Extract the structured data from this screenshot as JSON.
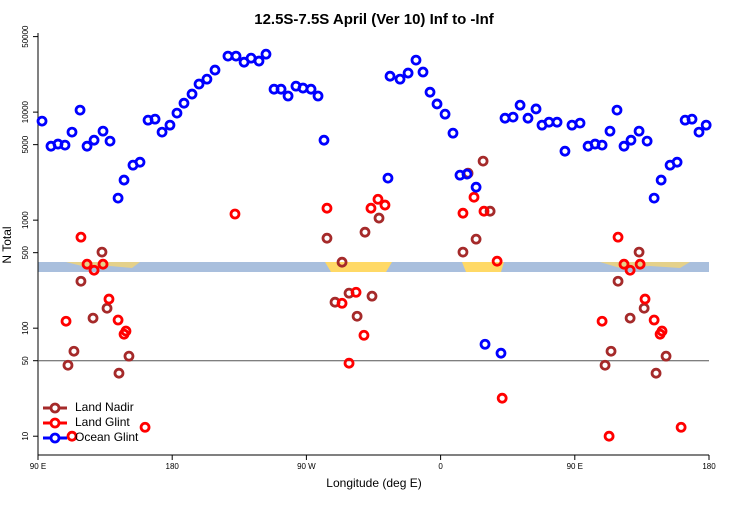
{
  "chart_data": {
    "type": "scatter",
    "title": "12.5S-7.5S April (Ver 10)   Inf to -Inf",
    "x_label": "Longitude (deg E)",
    "y_label": "N Total",
    "xlim": [
      90,
      540
    ],
    "xticks": [
      {
        "value": 90,
        "label": "90 E"
      },
      180,
      {
        "value": 270,
        "label": "90 W"
      },
      {
        "value": 360,
        "label": "0"
      },
      {
        "value": 450,
        "label": "90 E"
      },
      {
        "value": 540,
        "label": "180"
      }
    ],
    "ylim": [
      6.7,
      54000
    ],
    "log_y": true,
    "yticks": [
      10,
      50,
      100,
      500,
      1000,
      5000,
      10000,
      50000
    ],
    "hline": 50,
    "legend": "bottom-left",
    "series": [
      {
        "name": "Land Nadir",
        "color": "#a52a2a",
        "x": [
          110.1,
          114.1,
          118.8,
          126.9,
          132.9,
          136.3,
          144.3,
          151.0,
          283.8,
          289.2,
          293.9,
          298.6,
          304.0,
          309.3,
          314.0,
          318.7,
          375.0,
          378.4,
          383.8,
          388.5,
          393.2,
          470.3,
          474.3,
          479.0,
          487.1,
          493.1,
          496.5,
          504.5,
          511.2
        ],
        "values": [
          45.4,
          61.2,
          272,
          124,
          506,
          153,
          38.3,
          55.1,
          681,
          174,
          408,
          211,
          129,
          774,
          198,
          1045,
          506,
          2720,
          667,
          3520,
          1210,
          45.4,
          61.2,
          272,
          124,
          506,
          153,
          38.3,
          55.1
        ]
      },
      {
        "name": "Land Glint",
        "color": "#ff0000",
        "x": [
          108.8,
          112.8,
          118.8,
          122.9,
          127.6,
          133.6,
          137.6,
          143.7,
          147.7,
          149.0,
          161.8,
          222.1,
          283.8,
          293.9,
          298.6,
          303.3,
          308.6,
          313.3,
          318.0,
          322.7,
          375.0,
          382.4,
          389.1,
          397.9,
          401.3,
          468.3,
          473.0,
          479.0,
          483.0,
          487.1,
          493.8,
          497.1,
          503.2,
          507.2,
          508.5,
          521.3
        ],
        "values": [
          116,
          10,
          696,
          391,
          344,
          391,
          186,
          119,
          88,
          94,
          12.1,
          1140,
          1290,
          170,
          47.4,
          215,
          86,
          1290,
          1560,
          1380,
          1160,
          1630,
          1210,
          417,
          22.5,
          116,
          10,
          696,
          391,
          344,
          391,
          186,
          119,
          88,
          94,
          12.1
        ]
      },
      {
        "name": "Ocean Glint",
        "color": "#0000ff",
        "x": [
          92.7,
          98.7,
          103.4,
          108.1,
          112.8,
          118.2,
          122.9,
          127.6,
          133.6,
          138.3,
          143.7,
          147.7,
          153.7,
          158.4,
          163.8,
          168.5,
          173.2,
          178.5,
          183.2,
          187.9,
          193.3,
          198.0,
          203.3,
          208.7,
          217.4,
          222.8,
          228.2,
          232.9,
          238.2,
          242.9,
          248.3,
          253.0,
          257.7,
          263.0,
          267.7,
          273.1,
          277.8,
          281.8,
          324.7,
          326.1,
          332.8,
          338.2,
          343.5,
          348.2,
          352.9,
          357.6,
          363.0,
          368.3,
          373.0,
          377.7,
          383.8,
          389.8,
          400.5,
          403.2,
          408.6,
          413.3,
          418.6,
          424.0,
          428.0,
          432.7,
          438.1,
          443.4,
          448.1,
          453.5,
          458.9,
          463.6,
          468.3,
          473.6,
          478.3,
          483.0,
          487.7,
          493.1,
          498.5,
          503.2,
          507.9,
          513.9,
          518.6,
          524.0,
          528.6,
          533.3,
          538.1
        ],
        "values": [
          8260,
          4840,
          5060,
          4950,
          6530,
          10440,
          4840,
          5500,
          6670,
          5390,
          1600,
          2350,
          3230,
          3440,
          8430,
          8610,
          6530,
          7580,
          9790,
          12100,
          14700,
          18200,
          20200,
          24500,
          33000,
          33000,
          29000,
          31600,
          29700,
          34400,
          16300,
          16300,
          14100,
          17400,
          16700,
          16300,
          14100,
          5500,
          2450,
          21500,
          20200,
          23000,
          30300,
          23500,
          15300,
          11900,
          9580,
          6390,
          2610,
          2670,
          2020,
          71,
          58.7,
          8790,
          8990,
          11600,
          8790,
          10700,
          7580,
          8070,
          8070,
          4350,
          7580,
          7910,
          4840,
          5060,
          4950,
          6670,
          10440,
          4840,
          5500,
          6670,
          5390,
          1600,
          2350,
          3230,
          3440,
          8430,
          8610,
          6530,
          7580
        ]
      }
    ]
  }
}
